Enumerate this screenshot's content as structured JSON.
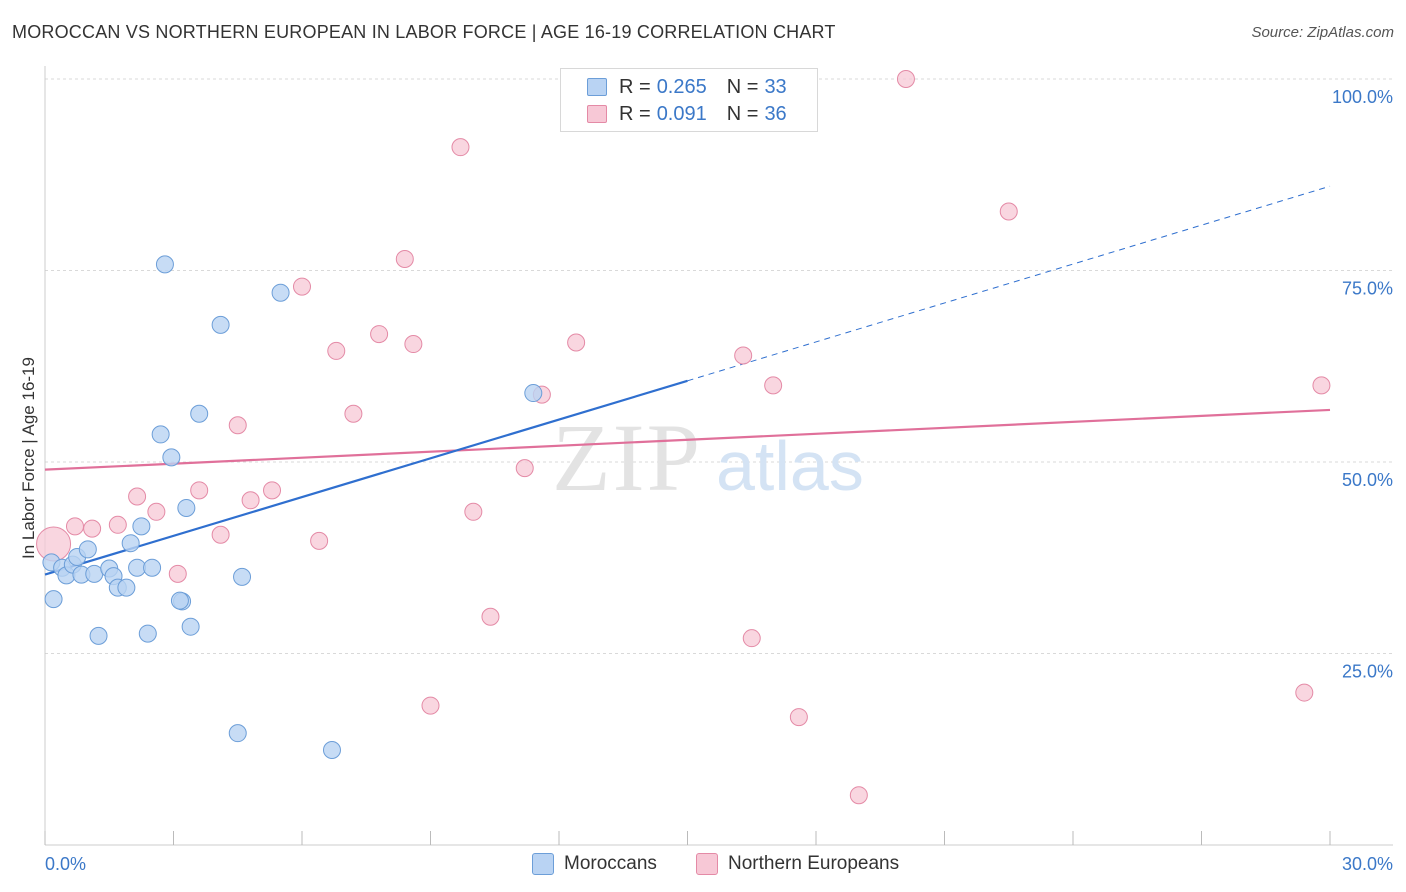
{
  "title": "MOROCCAN VS NORTHERN EUROPEAN IN LABOR FORCE | AGE 16-19 CORRELATION CHART",
  "source": "Source: ZipAtlas.com",
  "watermark": {
    "zip": "ZIP",
    "atlas": "atlas"
  },
  "legend": {
    "rows": [
      {
        "r_label": "R =",
        "r_value": "0.265",
        "n_label": "N =",
        "n_value": "33",
        "fill": "#b9d3f3",
        "stroke": "#6c9ed8"
      },
      {
        "r_label": "R =",
        "r_value": "0.091",
        "n_label": "N =",
        "n_value": "36",
        "fill": "#f7c8d6",
        "stroke": "#e48aa6"
      }
    ]
  },
  "bottom_legend": [
    {
      "label": "Moroccans",
      "fill": "#b9d3f3",
      "stroke": "#6c9ed8"
    },
    {
      "label": "Northern Europeans",
      "fill": "#f7c8d6",
      "stroke": "#e48aa6"
    }
  ],
  "colors": {
    "blue_line": "#2f6fcf",
    "pink_line": "#e0709a",
    "blue_point_fill": "#b9d3f3",
    "blue_point_stroke": "#6c9ed8",
    "pink_point_fill": "#f7c8d6",
    "pink_point_stroke": "#e48aa6",
    "tick_label": "#3b78c8",
    "grid": "#d9d9d9"
  },
  "chart_data": {
    "type": "scatter",
    "title": "MOROCCAN VS NORTHERN EUROPEAN IN LABOR FORCE | AGE 16-19 CORRELATION CHART",
    "xlabel": "",
    "ylabel": "In Labor Force | Age 16-19",
    "xlim": [
      0,
      30
    ],
    "ylim": [
      0,
      100
    ],
    "x_tick_labels": [
      "0.0%",
      "30.0%"
    ],
    "y_tick_labels": [
      "100.0%",
      "75.0%",
      "50.0%",
      "25.0%"
    ],
    "y_ticks": [
      100,
      75,
      50,
      25
    ],
    "grid": true,
    "legend_position": "top-center",
    "series": [
      {
        "name": "Moroccans",
        "r": 0.265,
        "n": 33,
        "trend": {
          "x": [
            0,
            15
          ],
          "y": [
            35.3,
            60.6
          ],
          "dashed_to": [
            30,
            86.0
          ]
        },
        "points": [
          [
            0.15,
            36.9
          ],
          [
            0.2,
            32.1
          ],
          [
            0.4,
            36.2
          ],
          [
            0.5,
            35.2
          ],
          [
            0.65,
            36.6
          ],
          [
            0.75,
            37.6
          ],
          [
            0.85,
            35.3
          ],
          [
            1.0,
            38.6
          ],
          [
            1.15,
            35.4
          ],
          [
            1.25,
            27.3
          ],
          [
            1.5,
            36.1
          ],
          [
            1.6,
            35.1
          ],
          [
            1.7,
            33.6
          ],
          [
            1.9,
            33.6
          ],
          [
            2.0,
            39.4
          ],
          [
            2.15,
            36.2
          ],
          [
            2.25,
            41.6
          ],
          [
            2.4,
            27.6
          ],
          [
            2.5,
            36.2
          ],
          [
            2.7,
            53.6
          ],
          [
            2.8,
            75.8
          ],
          [
            2.95,
            50.6
          ],
          [
            3.2,
            31.8
          ],
          [
            3.3,
            44.0
          ],
          [
            3.4,
            28.5
          ],
          [
            3.6,
            56.3
          ],
          [
            4.1,
            67.9
          ],
          [
            4.5,
            14.6
          ],
          [
            4.6,
            35.0
          ],
          [
            5.5,
            72.1
          ],
          [
            6.7,
            12.4
          ],
          [
            11.4,
            59.0
          ],
          [
            3.15,
            31.9
          ]
        ]
      },
      {
        "name": "Northern Europeans",
        "r": 0.091,
        "n": 36,
        "trend": {
          "x": [
            0,
            30
          ],
          "y": [
            49.0,
            56.8
          ]
        },
        "points": [
          [
            0.2,
            39.3
          ],
          [
            0.7,
            41.6
          ],
          [
            1.1,
            41.3
          ],
          [
            1.7,
            41.8
          ],
          [
            2.15,
            45.5
          ],
          [
            2.6,
            43.5
          ],
          [
            3.1,
            35.4
          ],
          [
            3.6,
            46.3
          ],
          [
            4.1,
            40.5
          ],
          [
            4.5,
            54.8
          ],
          [
            4.8,
            45.0
          ],
          [
            5.3,
            46.3
          ],
          [
            6.0,
            72.9
          ],
          [
            6.4,
            39.7
          ],
          [
            6.8,
            64.5
          ],
          [
            7.2,
            56.3
          ],
          [
            7.8,
            66.7
          ],
          [
            8.4,
            76.5
          ],
          [
            8.6,
            65.4
          ],
          [
            9.0,
            18.2
          ],
          [
            9.7,
            91.1
          ],
          [
            10.0,
            43.5
          ],
          [
            10.4,
            29.8
          ],
          [
            11.2,
            49.2
          ],
          [
            11.6,
            58.8
          ],
          [
            12.4,
            65.6
          ],
          [
            14.1,
            100.0
          ],
          [
            16.3,
            63.9
          ],
          [
            16.5,
            27.0
          ],
          [
            17.0,
            60.0
          ],
          [
            17.6,
            16.7
          ],
          [
            19.0,
            6.5
          ],
          [
            20.1,
            100.0
          ],
          [
            22.5,
            82.7
          ],
          [
            29.4,
            19.9
          ],
          [
            29.8,
            60.0
          ]
        ]
      }
    ]
  }
}
